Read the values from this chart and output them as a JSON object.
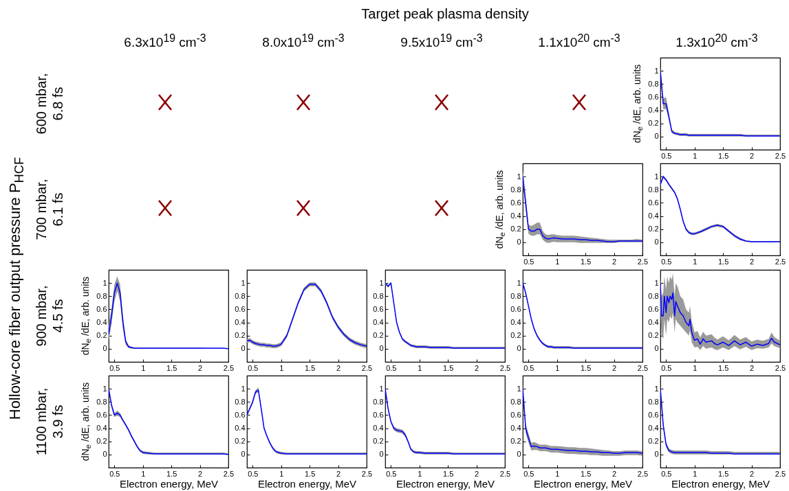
{
  "chart_data": [
    {
      "type": "other",
      "title": "Target peak plasma density",
      "ylabel": "Hollow-core fiber output pressure P$_{HCF}$",
      "categories": [
        "6.3x10$^{19}$ cm$^{-3}$",
        "8.0x10$^{19}$ cm$^{-3}$",
        "9.5x10$^{19}$ cm$^{-3}$",
        "1.1x10$^{20}$ cm$^{-3}$",
        "1.3x10$^{20}$ cm$^{-3}$"
      ],
      "y_categories": [
        "600 mbar, 6.8 fs",
        "700 mbar, 6.1 fs",
        "900 mbar, 4.5 fs",
        "1100 mbar, 3.9 fs"
      ]
    },
    {
      "type": "line",
      "ylabel": "dN$_{e}$ /dE, arb. units",
      "xlim": [
        0.4,
        2.5
      ],
      "xticks": [
        0.5,
        1,
        1.5,
        2,
        2.5
      ],
      "ylim": [
        -0.2,
        1.2
      ],
      "yticks": [
        0,
        0.2,
        0.4,
        0.6,
        0.8,
        1
      ],
      "x": [
        0.4,
        0.45,
        0.5,
        0.55,
        0.6,
        0.65,
        0.7,
        0.75,
        0.8,
        0.85,
        0.9,
        0.95,
        1,
        1.1,
        1.2,
        1.3,
        1.4,
        1.5,
        1.6,
        1.7,
        1.8,
        1.9,
        2,
        2.1,
        2.2,
        2.3,
        2.4,
        2.5
      ],
      "series": [
        {
          "color": "#0000ff",
          "values": [
            1,
            0.5,
            0.5,
            0.3,
            0.08,
            0.05,
            0.04,
            0.03,
            0.03,
            0.03,
            0.02,
            0.02,
            0.02,
            0.02,
            0.02,
            0.02,
            0.02,
            0.02,
            0.02,
            0.02,
            0.02,
            0.01,
            0.01,
            0.01,
            0.01,
            0.01,
            0.01,
            0.01
          ],
          "lower": [
            0.95,
            0.42,
            0.42,
            0.25,
            0.05,
            0.03,
            0.02,
            0.01,
            0.01,
            0.01,
            0,
            0,
            0,
            0,
            0,
            0,
            0,
            0,
            0,
            0,
            0,
            0,
            0,
            0,
            0,
            0,
            0,
            0
          ],
          "upper": [
            1.05,
            0.58,
            0.6,
            0.35,
            0.11,
            0.07,
            0.06,
            0.05,
            0.05,
            0.05,
            0.04,
            0.04,
            0.04,
            0.04,
            0.04,
            0.04,
            0.04,
            0.04,
            0.04,
            0.04,
            0.04,
            0.03,
            0.03,
            0.03,
            0.03,
            0.03,
            0.03,
            0.03
          ]
        }
      ]
    },
    {
      "type": "line",
      "ylabel": "dN$_{e}$ /dE, arb. units",
      "xlim": [
        0.4,
        2.5
      ],
      "xticks": [
        0.5,
        1,
        1.5,
        2,
        2.5
      ],
      "ylim": [
        -0.2,
        1.2
      ],
      "yticks": [
        0,
        0.2,
        0.4,
        0.6,
        0.8,
        1
      ],
      "x": [
        0.4,
        0.45,
        0.5,
        0.55,
        0.6,
        0.65,
        0.7,
        0.75,
        0.8,
        0.85,
        0.9,
        0.95,
        1,
        1.1,
        1.2,
        1.3,
        1.4,
        1.5,
        1.6,
        1.7,
        1.8,
        1.9,
        2,
        2.1,
        2.2,
        2.3,
        2.4,
        2.5
      ],
      "series": [
        {
          "color": "#0000ff",
          "values": [
            1,
            0.6,
            0.2,
            0.17,
            0.17,
            0.2,
            0.2,
            0.1,
            0.06,
            0.05,
            0.06,
            0.07,
            0.06,
            0.05,
            0.05,
            0.05,
            0.04,
            0.04,
            0.03,
            0.03,
            0.02,
            0.01,
            0.01,
            0.02,
            0.02,
            0.02,
            0.02,
            0.02
          ],
          "lower": [
            0.9,
            0.5,
            0.13,
            0.1,
            0.1,
            0.12,
            0.12,
            0.04,
            0,
            -0.01,
            0,
            0.01,
            0,
            0,
            0,
            0,
            -0.01,
            -0.01,
            -0.01,
            -0.01,
            -0.01,
            -0.01,
            -0.01,
            0,
            0,
            0,
            0,
            0
          ],
          "upper": [
            1.1,
            0.7,
            0.27,
            0.25,
            0.27,
            0.3,
            0.3,
            0.17,
            0.12,
            0.11,
            0.12,
            0.12,
            0.11,
            0.1,
            0.1,
            0.1,
            0.09,
            0.08,
            0.07,
            0.06,
            0.05,
            0.04,
            0.04,
            0.04,
            0.04,
            0.04,
            0.05,
            0.04
          ]
        }
      ]
    },
    {
      "type": "line",
      "xlim": [
        0.4,
        2.5
      ],
      "xticks": [
        0.5,
        1,
        1.5,
        2,
        2.5
      ],
      "ylim": [
        -0.2,
        1.2
      ],
      "yticks": [
        0,
        0.2,
        0.4,
        0.6,
        0.8,
        1
      ],
      "x": [
        0.4,
        0.45,
        0.5,
        0.55,
        0.6,
        0.65,
        0.7,
        0.75,
        0.8,
        0.85,
        0.9,
        0.95,
        1,
        1.1,
        1.2,
        1.3,
        1.4,
        1.5,
        1.6,
        1.7,
        1.8,
        1.9,
        2,
        2.1,
        2.2,
        2.3,
        2.4,
        2.5
      ],
      "series": [
        {
          "color": "#0000ff",
          "values": [
            0.88,
            1,
            0.95,
            0.88,
            0.82,
            0.76,
            0.66,
            0.5,
            0.32,
            0.2,
            0.15,
            0.13,
            0.13,
            0.16,
            0.2,
            0.24,
            0.26,
            0.24,
            0.17,
            0.1,
            0.05,
            0.02,
            0.01,
            0.01,
            0.01,
            0.01,
            0.01,
            0.01
          ],
          "lower": [
            0.86,
            0.98,
            0.93,
            0.86,
            0.8,
            0.74,
            0.64,
            0.48,
            0.3,
            0.18,
            0.13,
            0.11,
            0.11,
            0.14,
            0.18,
            0.22,
            0.24,
            0.22,
            0.15,
            0.08,
            0.03,
            0.01,
            0,
            0,
            0,
            0,
            0,
            0
          ],
          "upper": [
            0.9,
            1.02,
            0.97,
            0.9,
            0.84,
            0.78,
            0.68,
            0.52,
            0.34,
            0.22,
            0.17,
            0.15,
            0.15,
            0.18,
            0.22,
            0.26,
            0.28,
            0.26,
            0.19,
            0.12,
            0.07,
            0.03,
            0.02,
            0.02,
            0.02,
            0.02,
            0.02,
            0.02
          ]
        }
      ]
    },
    {
      "type": "line",
      "ylabel": "dN$_{e}$ /dE, arb. units",
      "xlim": [
        0.4,
        2.5
      ],
      "xticks": [
        0.5,
        1,
        1.5,
        2,
        2.5
      ],
      "ylim": [
        -0.2,
        1.2
      ],
      "yticks": [
        0,
        0.2,
        0.4,
        0.6,
        0.8,
        1
      ],
      "x": [
        0.4,
        0.45,
        0.5,
        0.55,
        0.6,
        0.65,
        0.7,
        0.75,
        0.8,
        0.85,
        0.9,
        0.95,
        1,
        1.1,
        1.2,
        1.3,
        1.4,
        1.5,
        1.6,
        1.7,
        1.8,
        1.9,
        2,
        2.1,
        2.2,
        2.3,
        2.4,
        2.5
      ],
      "series": [
        {
          "color": "#0000ff",
          "values": [
            0.22,
            0.5,
            0.85,
            1,
            0.85,
            0.4,
            0.1,
            0.03,
            0.02,
            0.01,
            0.01,
            0.01,
            0.01,
            0.01,
            0.01,
            0.01,
            0.01,
            0.01,
            0.01,
            0.01,
            0.01,
            0.01,
            0.01,
            0.01,
            0.01,
            0.01,
            0.01,
            0
          ],
          "lower": [
            0.12,
            0.38,
            0.72,
            0.88,
            0.72,
            0.3,
            0.06,
            0.01,
            0,
            0,
            0,
            0,
            0,
            0,
            0,
            0,
            0,
            0,
            0,
            0,
            0,
            0,
            0,
            0,
            0,
            0,
            0,
            0
          ],
          "upper": [
            0.35,
            0.62,
            0.98,
            1.1,
            0.98,
            0.5,
            0.15,
            0.05,
            0.03,
            0.02,
            0.02,
            0.02,
            0.02,
            0.02,
            0.02,
            0.02,
            0.02,
            0.02,
            0.02,
            0.02,
            0.02,
            0.02,
            0.02,
            0.01,
            0.01,
            0.01,
            0.01,
            0.01
          ]
        }
      ]
    },
    {
      "type": "line",
      "xlim": [
        0.4,
        2.5
      ],
      "xticks": [
        0.5,
        1,
        1.5,
        2,
        2.5
      ],
      "ylim": [
        -0.2,
        1.2
      ],
      "yticks": [
        0,
        0.2,
        0.4,
        0.6,
        0.8,
        1
      ],
      "x": [
        0.4,
        0.45,
        0.5,
        0.55,
        0.6,
        0.65,
        0.7,
        0.75,
        0.8,
        0.85,
        0.9,
        0.95,
        1,
        1.1,
        1.2,
        1.3,
        1.4,
        1.5,
        1.6,
        1.7,
        1.8,
        1.9,
        2,
        2.1,
        2.2,
        2.3,
        2.4,
        2.5
      ],
      "series": [
        {
          "color": "#0000ff",
          "values": [
            0.12,
            0.13,
            0.1,
            0.08,
            0.07,
            0.06,
            0.06,
            0.05,
            0.05,
            0.04,
            0.04,
            0.05,
            0.07,
            0.2,
            0.45,
            0.7,
            0.9,
            0.98,
            0.98,
            0.88,
            0.7,
            0.48,
            0.33,
            0.22,
            0.14,
            0.09,
            0.06,
            0.04
          ],
          "lower": [
            0.09,
            0.1,
            0.07,
            0.05,
            0.04,
            0.03,
            0.03,
            0.02,
            0.02,
            0.01,
            0.01,
            0.02,
            0.04,
            0.17,
            0.42,
            0.67,
            0.87,
            0.95,
            0.95,
            0.85,
            0.67,
            0.45,
            0.3,
            0.19,
            0.11,
            0.06,
            0.03,
            0.01
          ],
          "upper": [
            0.15,
            0.16,
            0.13,
            0.11,
            0.1,
            0.09,
            0.09,
            0.08,
            0.08,
            0.07,
            0.07,
            0.08,
            0.1,
            0.23,
            0.48,
            0.73,
            0.93,
            1.01,
            1.01,
            0.91,
            0.73,
            0.51,
            0.36,
            0.25,
            0.17,
            0.12,
            0.09,
            0.07
          ]
        }
      ]
    },
    {
      "type": "line",
      "xlim": [
        0.4,
        2.5
      ],
      "xticks": [
        0.5,
        1,
        1.5,
        2,
        2.5
      ],
      "ylim": [
        -0.2,
        1.2
      ],
      "yticks": [
        0,
        0.2,
        0.4,
        0.6,
        0.8,
        1
      ],
      "x": [
        0.4,
        0.45,
        0.5,
        0.55,
        0.6,
        0.65,
        0.7,
        0.75,
        0.8,
        0.85,
        0.9,
        0.95,
        1,
        1.1,
        1.2,
        1.3,
        1.4,
        1.5,
        1.6,
        1.7,
        1.8,
        1.9,
        2,
        2.1,
        2.2,
        2.3,
        2.4,
        2.5
      ],
      "series": [
        {
          "color": "#0000ff",
          "values": [
            1,
            0.95,
            1,
            0.7,
            0.4,
            0.25,
            0.15,
            0.11,
            0.08,
            0.05,
            0.04,
            0.03,
            0.03,
            0.03,
            0.02,
            0.02,
            0.02,
            0.02,
            0.01,
            0.01,
            0.01,
            0.01,
            0.01,
            0.01,
            0.01,
            0.01,
            0.01,
            0.01
          ],
          "lower": [
            0.98,
            0.93,
            0.98,
            0.68,
            0.38,
            0.23,
            0.13,
            0.09,
            0.06,
            0.03,
            0.02,
            0.01,
            0.01,
            0.01,
            0,
            0,
            0,
            0,
            0,
            0,
            0,
            0,
            0,
            0,
            0,
            0,
            0,
            0
          ],
          "upper": [
            1.02,
            0.97,
            1.02,
            0.72,
            0.42,
            0.27,
            0.17,
            0.13,
            0.1,
            0.07,
            0.06,
            0.05,
            0.05,
            0.05,
            0.04,
            0.04,
            0.04,
            0.04,
            0.03,
            0.03,
            0.03,
            0.03,
            0.03,
            0.03,
            0.03,
            0.03,
            0.03,
            0.03
          ]
        }
      ]
    },
    {
      "type": "line",
      "xlim": [
        0.4,
        2.5
      ],
      "xticks": [
        0.5,
        1,
        1.5,
        2,
        2.5
      ],
      "ylim": [
        -0.2,
        1.2
      ],
      "yticks": [
        0,
        0.2,
        0.4,
        0.6,
        0.8,
        1
      ],
      "x": [
        0.4,
        0.45,
        0.5,
        0.55,
        0.6,
        0.65,
        0.7,
        0.75,
        0.8,
        0.85,
        0.9,
        0.95,
        1,
        1.1,
        1.2,
        1.3,
        1.4,
        1.5,
        1.6,
        1.7,
        1.8,
        1.9,
        2,
        2.1,
        2.2,
        2.3,
        2.4,
        2.5
      ],
      "series": [
        {
          "color": "#0000ff",
          "values": [
            1,
            0.85,
            0.65,
            0.45,
            0.3,
            0.2,
            0.13,
            0.08,
            0.05,
            0.03,
            0.03,
            0.02,
            0.02,
            0.02,
            0.02,
            0.01,
            0.01,
            0.01,
            0.01,
            0.01,
            0.01,
            0.01,
            0.01,
            0.01,
            0.01,
            0.01,
            0.01,
            0.01
          ],
          "lower": [
            0.98,
            0.83,
            0.63,
            0.43,
            0.28,
            0.18,
            0.11,
            0.06,
            0.03,
            0.01,
            0.01,
            0,
            0,
            0,
            0,
            0,
            0,
            0,
            0,
            0,
            0,
            0,
            0,
            0,
            0,
            0,
            0,
            0
          ],
          "upper": [
            1.02,
            0.87,
            0.67,
            0.47,
            0.32,
            0.22,
            0.15,
            0.1,
            0.07,
            0.05,
            0.05,
            0.04,
            0.04,
            0.04,
            0.04,
            0.03,
            0.03,
            0.03,
            0.03,
            0.03,
            0.03,
            0.03,
            0.03,
            0.03,
            0.03,
            0.03,
            0.03,
            0.03
          ]
        }
      ]
    },
    {
      "type": "line",
      "xlim": [
        0.4,
        2.5
      ],
      "xticks": [
        0.5,
        1,
        1.5,
        2,
        2.5
      ],
      "ylim": [
        -0.2,
        1.2
      ],
      "yticks": [
        0,
        0.2,
        0.4,
        0.6,
        0.8,
        1
      ],
      "x": [
        0.4,
        0.42,
        0.45,
        0.47,
        0.5,
        0.52,
        0.55,
        0.57,
        0.6,
        0.62,
        0.65,
        0.67,
        0.7,
        0.75,
        0.8,
        0.85,
        0.9,
        0.92,
        0.95,
        1,
        1.05,
        1.1,
        1.15,
        1.2,
        1.3,
        1.35,
        1.4,
        1.5,
        1.6,
        1.7,
        1.8,
        1.9,
        2,
        2.1,
        2.2,
        2.3,
        2.35,
        2.4,
        2.5
      ],
      "series": [
        {
          "color": "#0000ff",
          "values": [
            1,
            0.5,
            0.5,
            0.8,
            0.55,
            0.8,
            0.7,
            0.8,
            0.75,
            0.85,
            0.5,
            0.72,
            0.65,
            0.55,
            0.5,
            0.4,
            0.35,
            0.45,
            0.25,
            0.13,
            0.15,
            0.07,
            0.15,
            0.1,
            0.12,
            0.08,
            0.06,
            0.1,
            0.05,
            0.12,
            0.06,
            0.1,
            0.04,
            0.07,
            0.05,
            0.08,
            0.16,
            0.1,
            0.06
          ],
          "lower": [
            0.6,
            0.2,
            0.15,
            0.45,
            0.2,
            0.45,
            0.4,
            0.5,
            0.45,
            0.55,
            0.25,
            0.45,
            0.4,
            0.35,
            0.3,
            0.25,
            0.2,
            0.28,
            0.1,
            0.02,
            0.03,
            -0.02,
            0.04,
            0,
            0.02,
            -0.01,
            -0.02,
            0.02,
            -0.02,
            0.04,
            -0.01,
            0.03,
            -0.02,
            0.01,
            0,
            0.02,
            0.08,
            0.04,
            0.01
          ],
          "upper": [
            1.1,
            0.8,
            0.85,
            1.1,
            0.9,
            1.1,
            1,
            1.1,
            1.05,
            1.15,
            0.8,
            1,
            0.95,
            0.8,
            0.75,
            0.6,
            0.55,
            0.65,
            0.42,
            0.25,
            0.27,
            0.17,
            0.26,
            0.2,
            0.22,
            0.17,
            0.14,
            0.19,
            0.13,
            0.21,
            0.14,
            0.18,
            0.11,
            0.14,
            0.12,
            0.15,
            0.25,
            0.18,
            0.12
          ]
        }
      ]
    },
    {
      "type": "line",
      "ylabel": "dN$_{e}$ /dE, arb. units",
      "xlabel": "Electron energy, MeV",
      "xlim": [
        0.4,
        2.5
      ],
      "xticks": [
        0.5,
        1,
        1.5,
        2,
        2.5
      ],
      "ylim": [
        -0.2,
        1.2
      ],
      "yticks": [
        0,
        0.2,
        0.4,
        0.6,
        0.8,
        1
      ],
      "x": [
        0.4,
        0.45,
        0.5,
        0.55,
        0.6,
        0.65,
        0.7,
        0.75,
        0.8,
        0.85,
        0.9,
        0.95,
        1,
        1.1,
        1.2,
        1.3,
        1.4,
        1.5,
        1.6,
        1.7,
        1.8,
        1.9,
        2,
        2.1,
        2.2,
        2.3,
        2.4,
        2.5
      ],
      "series": [
        {
          "color": "#0000ff",
          "values": [
            1,
            0.75,
            0.6,
            0.63,
            0.6,
            0.52,
            0.45,
            0.37,
            0.28,
            0.2,
            0.12,
            0.06,
            0.03,
            0.02,
            0.01,
            0.01,
            0.01,
            0.01,
            0.01,
            0.01,
            0.01,
            0.01,
            0.01,
            0.01,
            0.01,
            0.01,
            0.01,
            0
          ],
          "lower": [
            0.98,
            0.72,
            0.57,
            0.59,
            0.57,
            0.5,
            0.43,
            0.35,
            0.26,
            0.18,
            0.1,
            0.04,
            0.01,
            0,
            0,
            0,
            0,
            0,
            0,
            0,
            0,
            0,
            0,
            0,
            0,
            0,
            0,
            0
          ],
          "upper": [
            1.02,
            0.78,
            0.63,
            0.67,
            0.63,
            0.54,
            0.47,
            0.39,
            0.3,
            0.22,
            0.14,
            0.08,
            0.05,
            0.04,
            0.03,
            0.03,
            0.03,
            0.03,
            0.03,
            0.03,
            0.03,
            0.03,
            0.03,
            0.03,
            0.03,
            0.03,
            0.03,
            0.02
          ]
        }
      ]
    },
    {
      "type": "line",
      "xlabel": "Electron energy, MeV",
      "xlim": [
        0.4,
        2.5
      ],
      "xticks": [
        0.5,
        1,
        1.5,
        2,
        2.5
      ],
      "ylim": [
        -0.2,
        1.2
      ],
      "yticks": [
        0,
        0.2,
        0.4,
        0.6,
        0.8,
        1
      ],
      "x": [
        0.4,
        0.45,
        0.5,
        0.55,
        0.6,
        0.65,
        0.7,
        0.75,
        0.8,
        0.85,
        0.9,
        0.95,
        1,
        1.1,
        1.2,
        1.3,
        1.4,
        1.5,
        1.6,
        1.7,
        1.8,
        1.9,
        2,
        2.1,
        2.2,
        2.3,
        2.4,
        2.5
      ],
      "series": [
        {
          "color": "#0000ff",
          "values": [
            0.6,
            0.7,
            0.8,
            0.95,
            0.98,
            0.7,
            0.4,
            0.28,
            0.18,
            0.1,
            0.05,
            0.03,
            0.02,
            0.01,
            0.01,
            0.01,
            0.01,
            0.01,
            0.01,
            0.01,
            0.01,
            0.01,
            0.01,
            0.01,
            0.01,
            0.01,
            0.01,
            0.01
          ],
          "lower": [
            0.58,
            0.68,
            0.77,
            0.92,
            0.95,
            0.67,
            0.38,
            0.26,
            0.16,
            0.08,
            0.03,
            0.01,
            0,
            0,
            0,
            0,
            0,
            0,
            0,
            0,
            0,
            0,
            0,
            0,
            0,
            0,
            0,
            0
          ],
          "upper": [
            0.62,
            0.72,
            0.83,
            0.98,
            1.02,
            0.73,
            0.42,
            0.3,
            0.2,
            0.12,
            0.07,
            0.05,
            0.04,
            0.03,
            0.03,
            0.03,
            0.03,
            0.03,
            0.03,
            0.03,
            0.03,
            0.03,
            0.03,
            0.03,
            0.03,
            0.03,
            0.03,
            0.03
          ]
        }
      ]
    },
    {
      "type": "line",
      "xlabel": "Electron energy, MeV",
      "xlim": [
        0.4,
        2.5
      ],
      "xticks": [
        0.5,
        1,
        1.5,
        2,
        2.5
      ],
      "ylim": [
        -0.2,
        1.2
      ],
      "yticks": [
        0,
        0.2,
        0.4,
        0.6,
        0.8,
        1
      ],
      "x": [
        0.4,
        0.45,
        0.5,
        0.55,
        0.6,
        0.65,
        0.7,
        0.75,
        0.8,
        0.85,
        0.9,
        0.95,
        1,
        1.1,
        1.2,
        1.3,
        1.4,
        1.5,
        1.6,
        1.7,
        1.8,
        1.9,
        2,
        2.1,
        2.2,
        2.3,
        2.4,
        2.5
      ],
      "series": [
        {
          "color": "#0000ff",
          "values": [
            1,
            0.7,
            0.5,
            0.4,
            0.37,
            0.36,
            0.35,
            0.3,
            0.2,
            0.08,
            0.04,
            0.03,
            0.03,
            0.02,
            0.02,
            0.02,
            0.02,
            0.02,
            0.01,
            0.01,
            0.01,
            0.01,
            0.01,
            0.01,
            0.01,
            0.01,
            0.01,
            0.01
          ],
          "lower": [
            0.98,
            0.68,
            0.48,
            0.37,
            0.34,
            0.33,
            0.32,
            0.27,
            0.18,
            0.06,
            0.02,
            0.01,
            0.01,
            0,
            0,
            0,
            0,
            0,
            0,
            0,
            0,
            0,
            0,
            0,
            0,
            0,
            0,
            0
          ],
          "upper": [
            1.02,
            0.72,
            0.52,
            0.43,
            0.4,
            0.39,
            0.38,
            0.33,
            0.22,
            0.1,
            0.06,
            0.05,
            0.05,
            0.04,
            0.04,
            0.04,
            0.04,
            0.04,
            0.03,
            0.03,
            0.03,
            0.03,
            0.03,
            0.03,
            0.03,
            0.03,
            0.03,
            0.03
          ]
        }
      ]
    },
    {
      "type": "line",
      "xlabel": "Electron energy, MeV",
      "xlim": [
        0.4,
        2.5
      ],
      "xticks": [
        0.5,
        1,
        1.5,
        2,
        2.5
      ],
      "ylim": [
        -0.2,
        1.2
      ],
      "yticks": [
        0,
        0.2,
        0.4,
        0.6,
        0.8,
        1
      ],
      "x": [
        0.4,
        0.45,
        0.5,
        0.55,
        0.6,
        0.65,
        0.7,
        0.75,
        0.8,
        0.85,
        0.9,
        0.95,
        1,
        1.1,
        1.2,
        1.3,
        1.4,
        1.5,
        1.6,
        1.7,
        1.8,
        1.9,
        2,
        2.1,
        2.2,
        2.3,
        2.4,
        2.5
      ],
      "series": [
        {
          "color": "#0000ff",
          "values": [
            1,
            0.4,
            0.25,
            0.12,
            0.13,
            0.12,
            0.1,
            0.1,
            0.1,
            0.09,
            0.08,
            0.08,
            0.08,
            0.07,
            0.06,
            0.06,
            0.05,
            0.05,
            0.04,
            0.04,
            0.03,
            0.03,
            0.02,
            0.02,
            0.03,
            0.03,
            0.03,
            0.02
          ],
          "lower": [
            0.95,
            0.33,
            0.18,
            0.06,
            0.07,
            0.07,
            0.05,
            0.05,
            0.05,
            0.04,
            0.03,
            0.03,
            0.03,
            0.02,
            0.01,
            0.01,
            0,
            0,
            -0.01,
            -0.01,
            -0.02,
            -0.02,
            -0.02,
            -0.02,
            -0.01,
            -0.01,
            -0.01,
            -0.02
          ],
          "upper": [
            1.05,
            0.47,
            0.32,
            0.18,
            0.19,
            0.17,
            0.15,
            0.15,
            0.15,
            0.14,
            0.13,
            0.13,
            0.13,
            0.12,
            0.11,
            0.11,
            0.1,
            0.1,
            0.09,
            0.08,
            0.07,
            0.06,
            0.05,
            0.05,
            0.06,
            0.06,
            0.06,
            0.05
          ]
        }
      ]
    },
    {
      "type": "line",
      "xlabel": "Electron energy, MeV",
      "xlim": [
        0.4,
        2.5
      ],
      "xticks": [
        0.5,
        1,
        1.5,
        2,
        2.5
      ],
      "ylim": [
        -0.2,
        1.2
      ],
      "yticks": [
        0,
        0.2,
        0.4,
        0.6,
        0.8,
        1
      ],
      "x": [
        0.4,
        0.45,
        0.5,
        0.55,
        0.6,
        0.65,
        0.7,
        0.75,
        0.8,
        0.85,
        0.9,
        0.95,
        1,
        1.1,
        1.2,
        1.3,
        1.4,
        1.5,
        1.6,
        1.7,
        1.8,
        1.9,
        2,
        2.1,
        2.2,
        2.3,
        2.4,
        2.5
      ],
      "series": [
        {
          "color": "#0000ff",
          "values": [
            1,
            0.45,
            0.15,
            0.06,
            0.04,
            0.03,
            0.03,
            0.03,
            0.03,
            0.03,
            0.03,
            0.03,
            0.03,
            0.03,
            0.03,
            0.02,
            0.02,
            0.02,
            0.02,
            0.01,
            0.01,
            0.01,
            0.01,
            0.01,
            0.01,
            0.01,
            0.01,
            0.01
          ],
          "lower": [
            0.97,
            0.4,
            0.11,
            0.03,
            0.01,
            0,
            0,
            0,
            0,
            0,
            0,
            0,
            0,
            0,
            0,
            0,
            0,
            0,
            0,
            0,
            0,
            0,
            0,
            0,
            0,
            0,
            0,
            0
          ],
          "upper": [
            1.03,
            0.5,
            0.19,
            0.09,
            0.07,
            0.06,
            0.06,
            0.06,
            0.06,
            0.06,
            0.06,
            0.06,
            0.06,
            0.06,
            0.06,
            0.05,
            0.05,
            0.05,
            0.05,
            0.04,
            0.04,
            0.04,
            0.04,
            0.04,
            0.04,
            0.04,
            0.04,
            0.04
          ]
        }
      ]
    }
  ]
}
